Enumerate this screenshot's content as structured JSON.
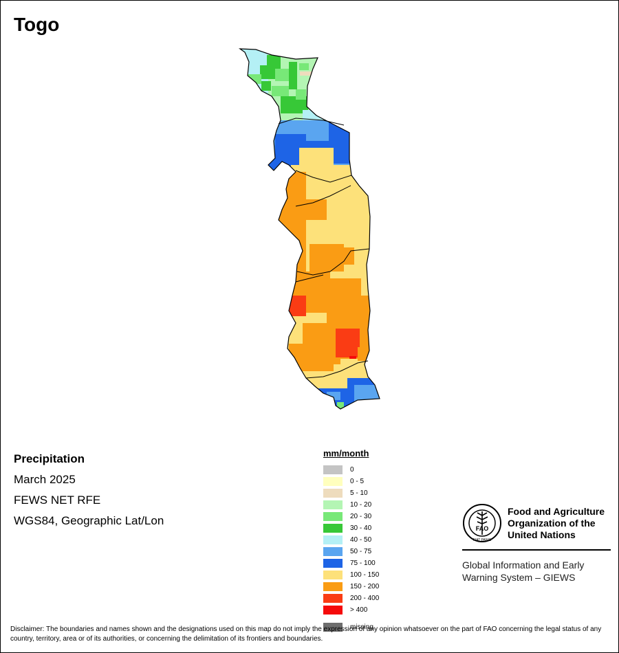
{
  "map": {
    "title": "Togo"
  },
  "info": {
    "variable": "Precipitation",
    "period": "March 2025",
    "source": "FEWS NET RFE",
    "projection": "WGS84, Geographic Lat/Lon"
  },
  "legend": {
    "title": "mm/month",
    "classes": [
      {
        "label": "0",
        "color": "#c4c4c4"
      },
      {
        "label": "0 - 5",
        "color": "#ffffbe"
      },
      {
        "label": "5 - 10",
        "color": "#eedcbd"
      },
      {
        "label": "10 - 20",
        "color": "#b4f5b4"
      },
      {
        "label": "20 - 30",
        "color": "#78e878"
      },
      {
        "label": "30 - 40",
        "color": "#37c837"
      },
      {
        "label": "40 - 50",
        "color": "#b4f0f5"
      },
      {
        "label": "50 - 75",
        "color": "#5aa5f0"
      },
      {
        "label": "75 - 100",
        "color": "#1e64e6"
      },
      {
        "label": "100 - 150",
        "color": "#fde17a"
      },
      {
        "label": "150 - 200",
        "color": "#fa9c14"
      },
      {
        "label": "200 - 400",
        "color": "#fa3c14"
      },
      {
        "label": "> 400",
        "color": "#f50a0a"
      }
    ],
    "missing": {
      "label": "missing",
      "color": "#6e6e6e"
    }
  },
  "logo": {
    "org_name": [
      "Food and Agriculture",
      "Organization of the",
      "United Nations"
    ],
    "program": [
      "Global Information and Early",
      "Warning System – GIEWS"
    ],
    "emblem_text": "FAO",
    "motto": "FIAT PANIS"
  },
  "disclaimer": "Disclaimer: The boundaries and names shown and the designations used on this map do not imply the expression of any opinion whatsoever on the part of FAO concerning the legal status of any country, territory, area or of its authorities, or concerning the delimitation of its frontiers and boundaries."
}
